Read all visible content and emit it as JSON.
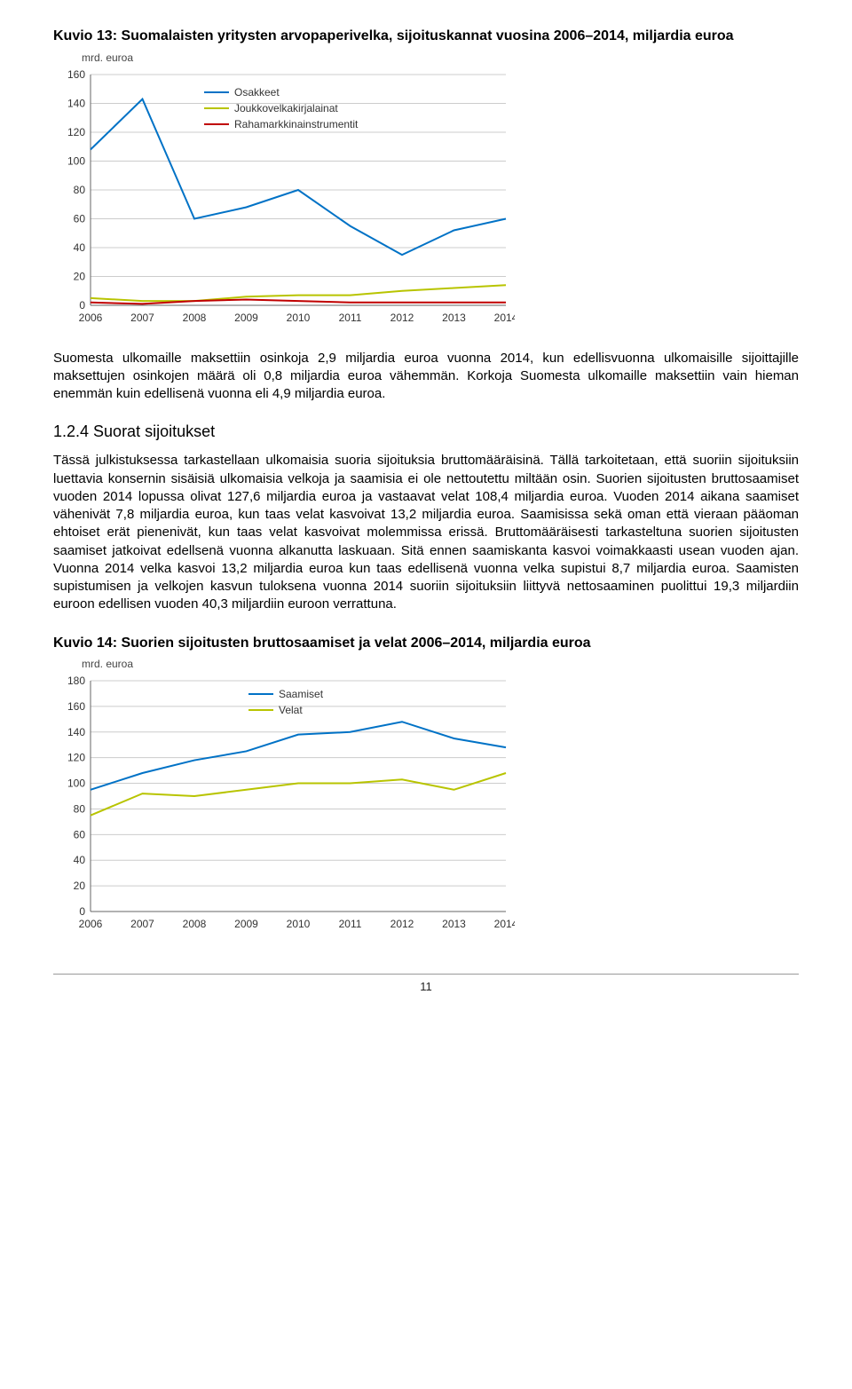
{
  "chart1": {
    "title": "Kuvio 13: Suomalaisten yritysten arvopaperivelka, sijoituskannat vuosina 2006–2014, miljardia euroa",
    "ylabel": "mrd. euroa",
    "type": "line",
    "background_color": "#ffffff",
    "grid_color": "#cccccc",
    "axis_color": "#666666",
    "xlim": [
      2006,
      2014
    ],
    "ylim": [
      0,
      160
    ],
    "ytick_step": 20,
    "xticks": [
      2006,
      2007,
      2008,
      2009,
      2010,
      2011,
      2012,
      2013,
      2014
    ],
    "legend": {
      "items": [
        {
          "label": "Osakkeet",
          "color": "#0072c6"
        },
        {
          "label": "Joukkovelkakirjalainat",
          "color": "#b8c400"
        },
        {
          "label": "Rahamarkkinainstrumentit",
          "color": "#c00000"
        }
      ]
    },
    "series": [
      {
        "name": "Osakkeet",
        "color": "#0072c6",
        "line_width": 2,
        "y": [
          108,
          143,
          60,
          68,
          80,
          55,
          35,
          52,
          60
        ]
      },
      {
        "name": "Joukkovelkakirjalainat",
        "color": "#b8c400",
        "line_width": 2,
        "y": [
          5,
          3,
          3,
          6,
          7,
          7,
          10,
          12,
          14
        ]
      },
      {
        "name": "Rahamarkkinainstrumentit",
        "color": "#c00000",
        "line_width": 2,
        "y": [
          2,
          1,
          3,
          4,
          3,
          2,
          2,
          2,
          2
        ]
      }
    ]
  },
  "para1": "Suomesta ulkomaille maksettiin osinkoja 2,9 miljardia euroa vuonna 2014, kun edellisvuonna ulkomaisille sijoittajille maksettujen osinkojen määrä oli 0,8 miljardia euroa vähemmän. Korkoja Suomesta ulkomaille maksettiin vain hieman enemmän kuin edellisenä vuonna eli 4,9 miljardia euroa.",
  "section_heading": "1.2.4 Suorat sijoitukset",
  "para2": "Tässä julkistuksessa tarkastellaan ulkomaisia suoria sijoituksia bruttomääräisinä. Tällä tarkoitetaan, että suoriin sijoituksiin luettavia konsernin sisäisiä ulkomaisia velkoja ja saamisia ei ole nettoutettu miltään osin. Suorien sijoitusten bruttosaamiset vuoden 2014 lopussa olivat 127,6 miljardia euroa ja vastaavat velat 108,4 miljardia euroa. Vuoden 2014 aikana saamiset vähenivät 7,8 miljardia euroa, kun taas velat kasvoivat 13,2 miljardia euroa. Saamisissa sekä oman että vieraan pääoman ehtoiset erät pienenivät, kun taas velat kasvoivat molemmissa erissä. Bruttomääräisesti tarkasteltuna suorien sijoitusten saamiset jatkoivat edellsenä vuonna alkanutta laskuaan. Sitä ennen saamiskanta kasvoi voimakkaasti usean vuoden ajan. Vuonna 2014 velka kasvoi 13,2 miljardia euroa kun taas edellisenä vuonna velka supistui 8,7 miljardia euroa. Saamisten supistumisen ja velkojen kasvun tuloksena vuonna 2014 suoriin sijoituksiin liittyvä nettosaaminen puolittui 19,3 miljardiin euroon edellisen vuoden 40,3 miljardiin euroon verrattuna.",
  "chart2": {
    "title": "Kuvio 14: Suorien sijoitusten bruttosaamiset ja velat 2006–2014, miljardia euroa",
    "ylabel": "mrd. euroa",
    "type": "line",
    "background_color": "#ffffff",
    "grid_color": "#cccccc",
    "axis_color": "#666666",
    "xlim": [
      2006,
      2014
    ],
    "ylim": [
      0,
      180
    ],
    "ytick_step": 20,
    "xticks": [
      2006,
      2007,
      2008,
      2009,
      2010,
      2011,
      2012,
      2013,
      2014
    ],
    "legend": {
      "items": [
        {
          "label": "Saamiset",
          "color": "#0072c6"
        },
        {
          "label": "Velat",
          "color": "#b8c400"
        }
      ]
    },
    "series": [
      {
        "name": "Saamiset",
        "color": "#0072c6",
        "line_width": 2,
        "y": [
          95,
          108,
          118,
          125,
          138,
          140,
          148,
          135,
          128
        ]
      },
      {
        "name": "Velat",
        "color": "#b8c400",
        "line_width": 2,
        "y": [
          75,
          92,
          90,
          95,
          100,
          100,
          103,
          95,
          108
        ]
      }
    ]
  },
  "page_number": "11"
}
